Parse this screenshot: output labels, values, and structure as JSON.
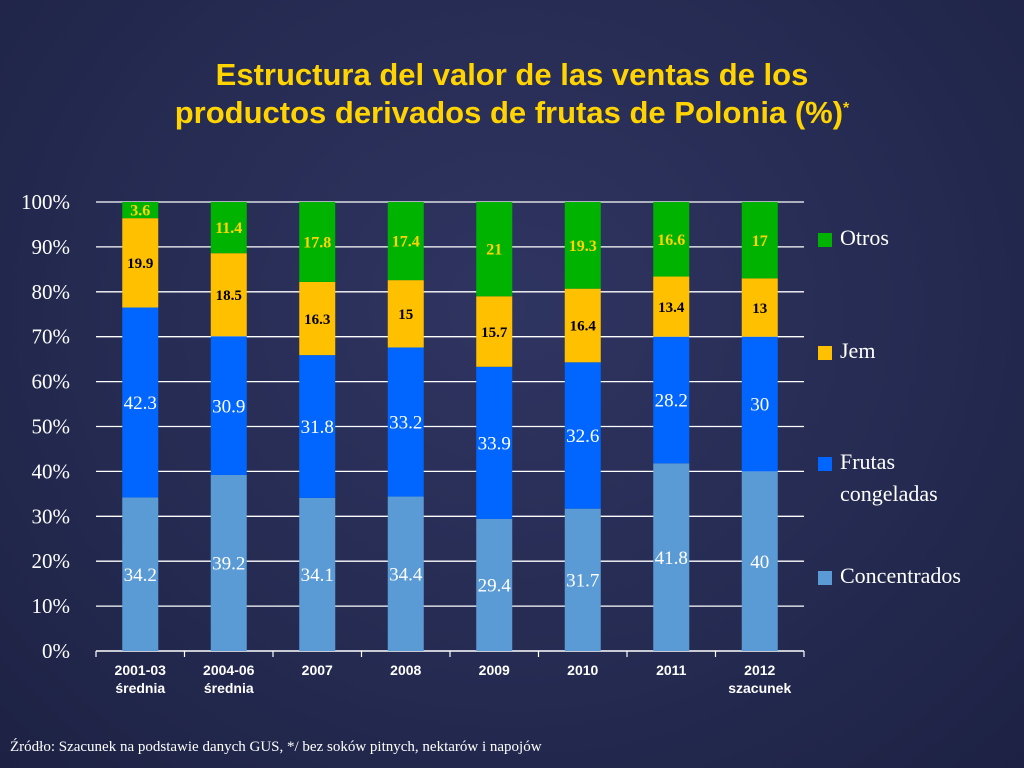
{
  "title_line1": "Estructura del valor de las ventas de los",
  "title_line2": "productos derivados de frutas de Polonia (%)",
  "title_mark": "*",
  "source": "Źródło: Szacunek na podstawie danych GUS, */ bez soków pitnych, nektarów i napojów",
  "chart_data": {
    "type": "bar",
    "stacked": true,
    "categories": [
      [
        "2001-03",
        "średnia"
      ],
      [
        "2004-06",
        "średnia"
      ],
      [
        "2007"
      ],
      [
        "2008"
      ],
      [
        "2009"
      ],
      [
        "2010"
      ],
      [
        "2011"
      ],
      [
        "2012",
        "szacunek"
      ]
    ],
    "series": [
      {
        "name": "Concentrados",
        "color": "#5b9bd5",
        "label_color": "#ffffff",
        "values": [
          34.2,
          39.2,
          34.1,
          34.4,
          29.4,
          31.7,
          41.8,
          40
        ]
      },
      {
        "name": "Frutas congeladas",
        "color": "#0066ff",
        "label_color": "#ffffff",
        "values": [
          42.3,
          30.9,
          31.8,
          33.2,
          33.9,
          32.6,
          28.2,
          30
        ]
      },
      {
        "name": "Jem",
        "color": "#ffc000",
        "label_color": "#000000",
        "values": [
          19.9,
          18.5,
          16.3,
          15,
          15.7,
          16.4,
          13.4,
          13
        ]
      },
      {
        "name": "Otros",
        "color": "#00b300",
        "label_color": "#ffd400",
        "values": [
          3.6,
          11.4,
          17.8,
          17.4,
          21,
          19.3,
          16.6,
          17
        ]
      }
    ],
    "ylim": [
      0,
      100
    ],
    "yticks": [
      "0%",
      "10%",
      "20%",
      "30%",
      "40%",
      "50%",
      "60%",
      "70%",
      "80%",
      "90%",
      "100%"
    ],
    "grid": true,
    "legend": "right"
  },
  "legend_items": [
    {
      "lines": [
        "Otros"
      ],
      "color": "#00b300"
    },
    {
      "lines": [
        "Jem"
      ],
      "color": "#ffc000"
    },
    {
      "lines": [
        "Frutas",
        "congeladas"
      ],
      "color": "#0066ff"
    },
    {
      "lines": [
        "Concentrados"
      ],
      "color": "#5b9bd5"
    }
  ]
}
